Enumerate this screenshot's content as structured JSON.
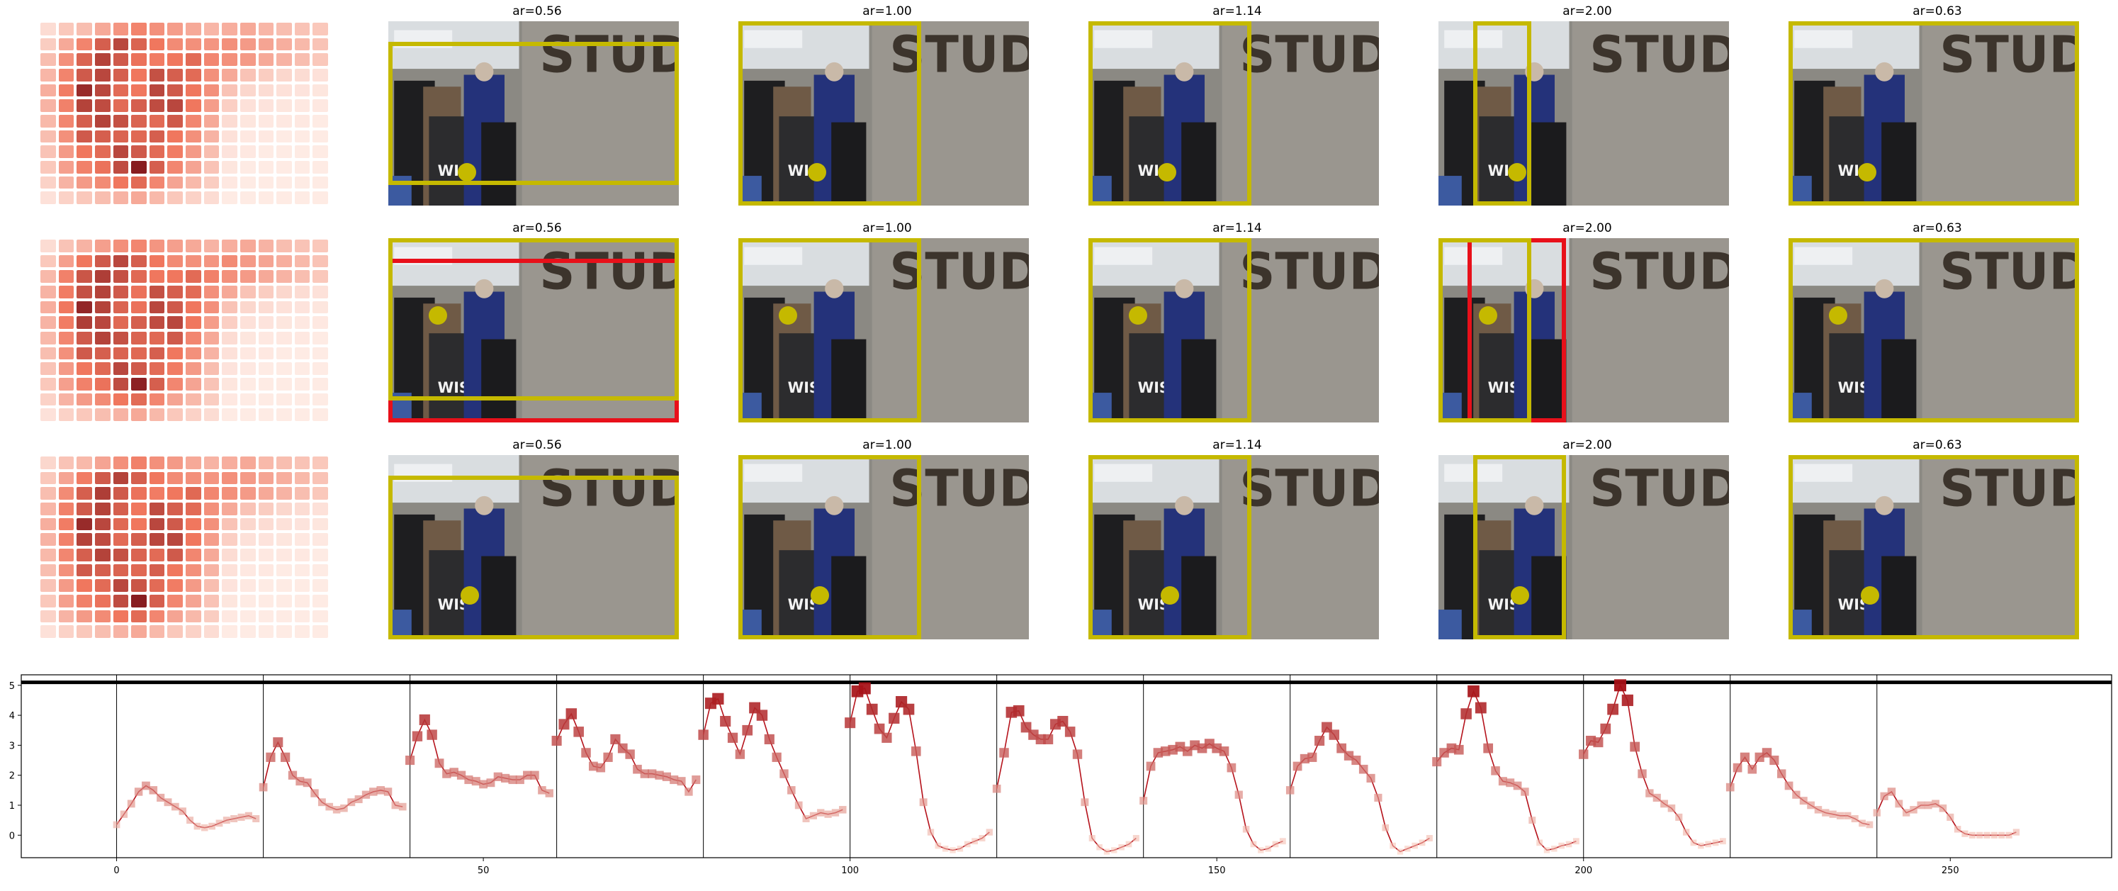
{
  "colors": {
    "heat_low": "#fff5f0",
    "heat_high": "#67000d",
    "crop_box": "#c5b900",
    "alt_box": "#e8101a",
    "marker": "#e8101a",
    "line": "#b5121b",
    "thick_line": "#000000"
  },
  "rows": [
    {
      "heat": [
        [
          0.1,
          0.18,
          0.22,
          0.3,
          0.38,
          0.45,
          0.4,
          0.35,
          0.3,
          0.25,
          0.28,
          0.3,
          0.25,
          0.22,
          0.2,
          0.18
        ],
        [
          0.16,
          0.3,
          0.45,
          0.6,
          0.7,
          0.58,
          0.5,
          0.42,
          0.4,
          0.38,
          0.4,
          0.36,
          0.32,
          0.28,
          0.24,
          0.2
        ],
        [
          0.22,
          0.4,
          0.58,
          0.72,
          0.62,
          0.52,
          0.48,
          0.5,
          0.55,
          0.44,
          0.4,
          0.36,
          0.3,
          0.26,
          0.22,
          0.18
        ],
        [
          0.25,
          0.45,
          0.62,
          0.7,
          0.6,
          0.5,
          0.66,
          0.6,
          0.55,
          0.4,
          0.3,
          0.2,
          0.16,
          0.12,
          0.1,
          0.08
        ],
        [
          0.28,
          0.48,
          0.82,
          0.7,
          0.55,
          0.5,
          0.7,
          0.62,
          0.5,
          0.4,
          0.2,
          0.12,
          0.1,
          0.08,
          0.07,
          0.06
        ],
        [
          0.26,
          0.46,
          0.72,
          0.68,
          0.55,
          0.6,
          0.68,
          0.7,
          0.5,
          0.35,
          0.15,
          0.08,
          0.07,
          0.06,
          0.05,
          0.05
        ],
        [
          0.24,
          0.44,
          0.6,
          0.72,
          0.66,
          0.58,
          0.55,
          0.62,
          0.44,
          0.3,
          0.1,
          0.06,
          0.05,
          0.05,
          0.05,
          0.04
        ],
        [
          0.22,
          0.4,
          0.62,
          0.6,
          0.58,
          0.56,
          0.6,
          0.5,
          0.4,
          0.26,
          0.08,
          0.05,
          0.05,
          0.04,
          0.04,
          0.04
        ],
        [
          0.2,
          0.36,
          0.5,
          0.55,
          0.7,
          0.62,
          0.55,
          0.48,
          0.36,
          0.22,
          0.07,
          0.05,
          0.04,
          0.04,
          0.04,
          0.04
        ],
        [
          0.18,
          0.34,
          0.46,
          0.52,
          0.68,
          0.88,
          0.6,
          0.44,
          0.32,
          0.2,
          0.06,
          0.04,
          0.04,
          0.04,
          0.04,
          0.04
        ],
        [
          0.14,
          0.26,
          0.36,
          0.42,
          0.5,
          0.55,
          0.44,
          0.32,
          0.24,
          0.16,
          0.05,
          0.04,
          0.04,
          0.04,
          0.04,
          0.04
        ],
        [
          0.08,
          0.14,
          0.18,
          0.22,
          0.26,
          0.3,
          0.24,
          0.18,
          0.14,
          0.1,
          0.04,
          0.04,
          0.04,
          0.04,
          0.04,
          0.04
        ]
      ],
      "panels": [
        {
          "label": "ar=0.56",
          "box": [
            0,
            0.11,
            1,
            0.89
          ],
          "dot": [
            0.27,
            0.82
          ]
        },
        {
          "label": "ar=1.00",
          "box": [
            0,
            0,
            0.63,
            1
          ],
          "dot": [
            0.27,
            0.82
          ]
        },
        {
          "label": "ar=1.14",
          "box": [
            0,
            0,
            0.56,
            1
          ],
          "dot": [
            0.27,
            0.82
          ]
        },
        {
          "label": "ar=2.00",
          "box": [
            0.12,
            0,
            0.32,
            1
          ],
          "dot": [
            0.27,
            0.82
          ]
        },
        {
          "label": "ar=0.63",
          "box": [
            0,
            0,
            1,
            1
          ],
          "dot": [
            0.27,
            0.82
          ]
        }
      ]
    },
    {
      "heat": [
        [
          0.1,
          0.2,
          0.26,
          0.34,
          0.4,
          0.44,
          0.38,
          0.34,
          0.3,
          0.26,
          0.28,
          0.3,
          0.26,
          0.22,
          0.2,
          0.18
        ],
        [
          0.18,
          0.34,
          0.5,
          0.62,
          0.7,
          0.6,
          0.5,
          0.42,
          0.4,
          0.38,
          0.42,
          0.36,
          0.32,
          0.28,
          0.24,
          0.2
        ],
        [
          0.24,
          0.46,
          0.64,
          0.74,
          0.66,
          0.56,
          0.5,
          0.5,
          0.55,
          0.46,
          0.4,
          0.36,
          0.3,
          0.26,
          0.22,
          0.18
        ],
        [
          0.26,
          0.48,
          0.66,
          0.72,
          0.62,
          0.52,
          0.66,
          0.6,
          0.55,
          0.4,
          0.3,
          0.2,
          0.16,
          0.12,
          0.1,
          0.08
        ],
        [
          0.28,
          0.5,
          0.84,
          0.72,
          0.58,
          0.52,
          0.7,
          0.62,
          0.5,
          0.4,
          0.2,
          0.12,
          0.1,
          0.08,
          0.07,
          0.06
        ],
        [
          0.26,
          0.48,
          0.74,
          0.7,
          0.56,
          0.6,
          0.68,
          0.7,
          0.5,
          0.35,
          0.15,
          0.08,
          0.07,
          0.06,
          0.05,
          0.05
        ],
        [
          0.24,
          0.44,
          0.62,
          0.72,
          0.66,
          0.58,
          0.56,
          0.62,
          0.44,
          0.3,
          0.1,
          0.06,
          0.05,
          0.05,
          0.05,
          0.04
        ],
        [
          0.22,
          0.4,
          0.62,
          0.6,
          0.58,
          0.56,
          0.6,
          0.5,
          0.4,
          0.26,
          0.08,
          0.05,
          0.05,
          0.04,
          0.04,
          0.04
        ],
        [
          0.2,
          0.36,
          0.5,
          0.56,
          0.7,
          0.62,
          0.55,
          0.48,
          0.36,
          0.22,
          0.07,
          0.05,
          0.04,
          0.04,
          0.04,
          0.04
        ],
        [
          0.18,
          0.34,
          0.46,
          0.52,
          0.68,
          0.86,
          0.6,
          0.44,
          0.32,
          0.2,
          0.06,
          0.04,
          0.04,
          0.04,
          0.04,
          0.04
        ],
        [
          0.14,
          0.26,
          0.36,
          0.42,
          0.5,
          0.55,
          0.44,
          0.32,
          0.24,
          0.16,
          0.05,
          0.04,
          0.04,
          0.04,
          0.04,
          0.04
        ],
        [
          0.08,
          0.14,
          0.18,
          0.22,
          0.26,
          0.3,
          0.24,
          0.18,
          0.14,
          0.1,
          0.04,
          0.04,
          0.04,
          0.04,
          0.04,
          0.04
        ]
      ],
      "panels": [
        {
          "label": "ar=0.56",
          "box": [
            0,
            0,
            1,
            0.88
          ],
          "alt": [
            0,
            0.11,
            1,
            1
          ],
          "dot": [
            0.17,
            0.42
          ]
        },
        {
          "label": "ar=1.00",
          "box": [
            0,
            0,
            0.63,
            1
          ],
          "dot": [
            0.17,
            0.42
          ]
        },
        {
          "label": "ar=1.14",
          "box": [
            0,
            0,
            0.56,
            1
          ],
          "dot": [
            0.17,
            0.42
          ]
        },
        {
          "label": "ar=2.00",
          "box": [
            0,
            0,
            0.32,
            1
          ],
          "alt": [
            0.1,
            0,
            0.44,
            1
          ],
          "dot": [
            0.17,
            0.42
          ]
        },
        {
          "label": "ar=0.63",
          "box": [
            0,
            0,
            1,
            1
          ],
          "dot": [
            0.17,
            0.42
          ]
        }
      ]
    },
    {
      "heat": [
        [
          0.12,
          0.2,
          0.24,
          0.32,
          0.4,
          0.46,
          0.4,
          0.36,
          0.3,
          0.26,
          0.28,
          0.3,
          0.24,
          0.22,
          0.2,
          0.18
        ],
        [
          0.18,
          0.32,
          0.48,
          0.62,
          0.72,
          0.6,
          0.5,
          0.42,
          0.4,
          0.38,
          0.4,
          0.36,
          0.32,
          0.28,
          0.24,
          0.2
        ],
        [
          0.22,
          0.42,
          0.6,
          0.74,
          0.62,
          0.52,
          0.48,
          0.5,
          0.56,
          0.44,
          0.4,
          0.36,
          0.3,
          0.26,
          0.22,
          0.18
        ],
        [
          0.25,
          0.46,
          0.62,
          0.72,
          0.6,
          0.5,
          0.68,
          0.6,
          0.55,
          0.4,
          0.3,
          0.2,
          0.16,
          0.12,
          0.1,
          0.08
        ],
        [
          0.28,
          0.48,
          0.82,
          0.7,
          0.56,
          0.5,
          0.7,
          0.62,
          0.5,
          0.4,
          0.2,
          0.12,
          0.1,
          0.08,
          0.07,
          0.06
        ],
        [
          0.26,
          0.46,
          0.72,
          0.68,
          0.55,
          0.6,
          0.7,
          0.7,
          0.5,
          0.35,
          0.15,
          0.08,
          0.07,
          0.06,
          0.05,
          0.05
        ],
        [
          0.24,
          0.44,
          0.6,
          0.72,
          0.66,
          0.58,
          0.55,
          0.62,
          0.44,
          0.3,
          0.1,
          0.06,
          0.05,
          0.05,
          0.05,
          0.04
        ],
        [
          0.22,
          0.4,
          0.62,
          0.6,
          0.58,
          0.56,
          0.6,
          0.5,
          0.4,
          0.26,
          0.08,
          0.05,
          0.05,
          0.04,
          0.04,
          0.04
        ],
        [
          0.2,
          0.36,
          0.5,
          0.55,
          0.7,
          0.64,
          0.55,
          0.48,
          0.36,
          0.22,
          0.07,
          0.05,
          0.04,
          0.04,
          0.04,
          0.04
        ],
        [
          0.18,
          0.34,
          0.46,
          0.52,
          0.68,
          0.88,
          0.6,
          0.44,
          0.32,
          0.2,
          0.06,
          0.04,
          0.04,
          0.04,
          0.04,
          0.04
        ],
        [
          0.14,
          0.26,
          0.36,
          0.42,
          0.5,
          0.55,
          0.44,
          0.32,
          0.24,
          0.16,
          0.05,
          0.04,
          0.04,
          0.04,
          0.04,
          0.04
        ],
        [
          0.08,
          0.14,
          0.18,
          0.22,
          0.26,
          0.3,
          0.24,
          0.18,
          0.14,
          0.1,
          0.04,
          0.04,
          0.04,
          0.04,
          0.04,
          0.04
        ]
      ],
      "panels": [
        {
          "label": "ar=0.56",
          "box": [
            0,
            0.11,
            1,
            1
          ],
          "dot": [
            0.28,
            0.76
          ]
        },
        {
          "label": "ar=1.00",
          "box": [
            0,
            0,
            0.63,
            1
          ],
          "dot": [
            0.28,
            0.76
          ]
        },
        {
          "label": "ar=1.14",
          "box": [
            0,
            0,
            0.56,
            1
          ],
          "dot": [
            0.28,
            0.76
          ]
        },
        {
          "label": "ar=2.00",
          "box": [
            0.12,
            0,
            0.44,
            1
          ],
          "dot": [
            0.28,
            0.76
          ]
        },
        {
          "label": "ar=0.63",
          "box": [
            0,
            0,
            1,
            1
          ],
          "dot": [
            0.28,
            0.76
          ]
        }
      ]
    }
  ],
  "chart_data": {
    "type": "line",
    "xlim": [
      -13,
      272
    ],
    "ylim": [
      -0.75,
      5.35
    ],
    "xticks": [
      0,
      50,
      100,
      150,
      200,
      250
    ],
    "yticks": [
      0,
      1,
      2,
      3,
      4,
      5
    ],
    "vlines": [
      0,
      20,
      40,
      60,
      80,
      100,
      120,
      140,
      160,
      180,
      200,
      220,
      240
    ],
    "hline": 5.1,
    "segments": [
      {
        "x0": 0,
        "values": [
          0.35,
          0.7,
          1.05,
          1.45,
          1.65,
          1.5,
          1.25,
          1.1,
          0.95,
          0.8,
          0.5,
          0.3,
          0.25,
          0.3,
          0.4,
          0.5,
          0.55,
          0.6,
          0.65,
          0.55
        ]
      },
      {
        "x0": 20,
        "values": [
          1.6,
          2.6,
          3.1,
          2.6,
          2.0,
          1.8,
          1.75,
          1.4,
          1.1,
          0.95,
          0.85,
          0.9,
          1.1,
          1.2,
          1.35,
          1.45,
          1.5,
          1.45,
          1.0,
          0.95
        ]
      },
      {
        "x0": 40,
        "values": [
          2.5,
          3.3,
          3.85,
          3.35,
          2.4,
          2.05,
          2.1,
          2.0,
          1.85,
          1.8,
          1.7,
          1.75,
          1.95,
          1.9,
          1.85,
          1.85,
          2.0,
          2.0,
          1.5,
          1.4
        ]
      },
      {
        "x0": 60,
        "values": [
          3.15,
          3.7,
          4.05,
          3.45,
          2.75,
          2.3,
          2.25,
          2.6,
          3.2,
          2.9,
          2.7,
          2.2,
          2.05,
          2.05,
          2.0,
          1.95,
          1.85,
          1.8,
          1.45,
          1.85
        ]
      },
      {
        "x0": 80,
        "values": [
          3.35,
          4.4,
          4.55,
          3.8,
          3.25,
          2.7,
          3.5,
          4.25,
          4.0,
          3.2,
          2.6,
          2.05,
          1.5,
          1.0,
          0.55,
          0.65,
          0.75,
          0.7,
          0.75,
          0.85
        ]
      },
      {
        "x0": 100,
        "values": [
          3.75,
          4.8,
          4.9,
          4.2,
          3.55,
          3.25,
          3.9,
          4.45,
          4.2,
          2.8,
          1.1,
          0.1,
          -0.35,
          -0.45,
          -0.5,
          -0.45,
          -0.3,
          -0.2,
          -0.1,
          0.1
        ]
      },
      {
        "x0": 120,
        "values": [
          1.55,
          2.75,
          4.1,
          4.15,
          3.6,
          3.35,
          3.2,
          3.2,
          3.7,
          3.8,
          3.45,
          2.7,
          1.1,
          -0.1,
          -0.4,
          -0.55,
          -0.5,
          -0.4,
          -0.3,
          -0.1
        ]
      },
      {
        "x0": 140,
        "values": [
          1.15,
          2.3,
          2.75,
          2.8,
          2.85,
          2.95,
          2.8,
          3.0,
          2.9,
          3.05,
          2.9,
          2.8,
          2.25,
          1.35,
          0.2,
          -0.3,
          -0.5,
          -0.45,
          -0.3,
          -0.2
        ]
      },
      {
        "x0": 160,
        "values": [
          1.5,
          2.3,
          2.55,
          2.6,
          3.15,
          3.6,
          3.35,
          2.9,
          2.65,
          2.5,
          2.2,
          1.9,
          1.25,
          0.25,
          -0.35,
          -0.55,
          -0.45,
          -0.35,
          -0.25,
          -0.1
        ]
      },
      {
        "x0": 180,
        "values": [
          2.45,
          2.75,
          2.9,
          2.85,
          4.05,
          4.8,
          4.25,
          2.9,
          2.15,
          1.8,
          1.75,
          1.65,
          1.45,
          0.5,
          -0.25,
          -0.5,
          -0.45,
          -0.35,
          -0.3,
          -0.2
        ]
      },
      {
        "x0": 200,
        "values": [
          2.7,
          3.15,
          3.1,
          3.55,
          4.2,
          5.0,
          4.5,
          2.95,
          2.05,
          1.4,
          1.25,
          1.05,
          0.9,
          0.6,
          0.1,
          -0.25,
          -0.35,
          -0.3,
          -0.25,
          -0.2
        ]
      },
      {
        "x0": 220,
        "values": [
          1.6,
          2.25,
          2.6,
          2.2,
          2.6,
          2.75,
          2.5,
          2.05,
          1.65,
          1.35,
          1.15,
          1.0,
          0.85,
          0.75,
          0.7,
          0.65,
          0.65,
          0.55,
          0.4,
          0.35
        ]
      },
      {
        "x0": 240,
        "values": [
          0.75,
          1.3,
          1.45,
          1.05,
          0.75,
          0.85,
          1.0,
          1.0,
          1.05,
          0.9,
          0.6,
          0.2,
          0.05,
          0.0,
          0.0,
          0.0,
          0.0,
          0.0,
          0.0,
          0.1
        ]
      }
    ]
  }
}
